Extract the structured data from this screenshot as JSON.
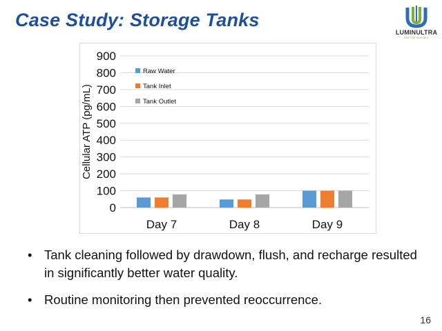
{
  "slide": {
    "title": "Case Study: Storage Tanks",
    "page_number": "16"
  },
  "logo": {
    "name": "LUMINULTRA",
    "tagline": "SEE THE INVISIBLE",
    "colors": [
      "#2f6db5",
      "#7bb23a"
    ]
  },
  "bullets": [
    "Tank cleaning followed by drawdown, flush, and recharge resulted in significantly better water quality.",
    "Routine monitoring then prevented reoccurrence."
  ],
  "chart_data": {
    "type": "bar",
    "title": "",
    "xlabel": "",
    "ylabel": "Cellular ATP (pg/mL)",
    "categories": [
      "Day 7",
      "Day 8",
      "Day 9"
    ],
    "ylim": [
      0,
      900
    ],
    "yticks": [
      0,
      100,
      200,
      300,
      400,
      500,
      600,
      700,
      800,
      900
    ],
    "grid": true,
    "legend_position": "top-left",
    "series": [
      {
        "name": "Raw Water",
        "color": "#5b9bd5",
        "values": [
          60,
          48,
          100
        ]
      },
      {
        "name": "Tank Inlet",
        "color": "#ed7d31",
        "values": [
          60,
          48,
          100
        ]
      },
      {
        "name": "Tank Outlet",
        "color": "#a5a5a5",
        "values": [
          78,
          78,
          100
        ]
      }
    ]
  }
}
